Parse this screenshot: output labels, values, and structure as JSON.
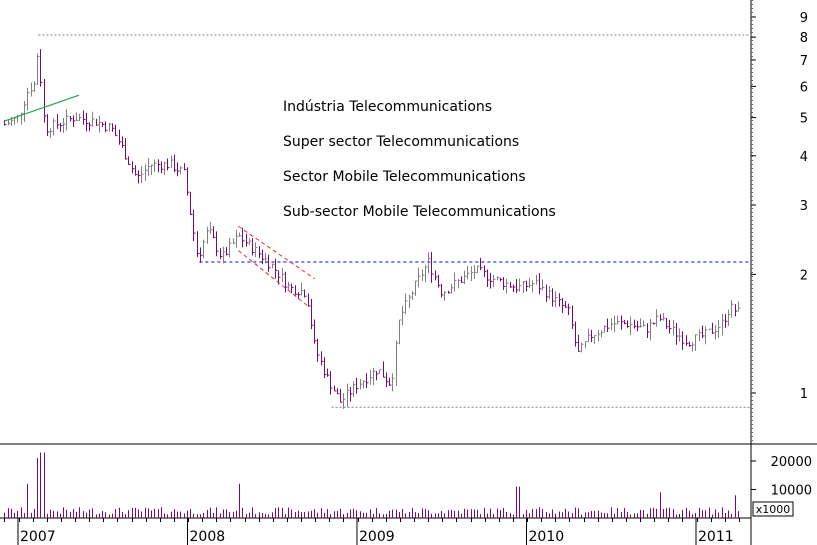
{
  "chart_data": [
    {
      "type": "ohlc",
      "scale": "log",
      "y_ticks": [
        1,
        2,
        3,
        4,
        5,
        6,
        7,
        8,
        9
      ],
      "x_ticks": [
        "2007",
        "2008",
        "2009",
        "2010",
        "2011"
      ],
      "annotations": [
        "Indústria Telecommunications",
        "Super sector Telecommunications",
        "Sector Mobile Telecommunications",
        "Sub-sector Mobile Telecommunications"
      ],
      "reference_lines": [
        {
          "y": 8.1,
          "color": "#808080",
          "style": "dotted"
        },
        {
          "y": 2.15,
          "color": "#0000cc",
          "style": "dashed"
        },
        {
          "y": 0.92,
          "color": "#808080",
          "style": "dotted"
        }
      ],
      "trend_line": {
        "from": [
          2006.92,
          4.9
        ],
        "to": [
          2007.36,
          5.7
        ],
        "color": "#2e9e4f"
      },
      "channel_lines": [
        {
          "from": [
            2008.3,
            2.65
          ],
          "to": [
            2008.75,
            1.95
          ],
          "color": "#e03030"
        },
        {
          "from": [
            2008.3,
            2.3
          ],
          "to": [
            2008.72,
            1.65
          ],
          "color": "#e03030"
        }
      ],
      "price_anchors": [
        [
          2006.92,
          4.8
        ],
        [
          2007.0,
          5.0
        ],
        [
          2007.06,
          5.9
        ],
        [
          2007.1,
          6.1
        ],
        [
          2007.12,
          8.0
        ],
        [
          2007.14,
          5.2
        ],
        [
          2007.17,
          4.7
        ],
        [
          2007.25,
          4.85
        ],
        [
          2007.33,
          5.0
        ],
        [
          2007.45,
          4.9
        ],
        [
          2007.55,
          4.7
        ],
        [
          2007.6,
          4.3
        ],
        [
          2007.7,
          3.5
        ],
        [
          2007.78,
          3.8
        ],
        [
          2007.9,
          3.8
        ],
        [
          2007.98,
          3.6
        ],
        [
          2008.02,
          2.8
        ],
        [
          2008.06,
          2.2
        ],
        [
          2008.12,
          2.6
        ],
        [
          2008.2,
          2.2
        ],
        [
          2008.3,
          2.5
        ],
        [
          2008.4,
          2.3
        ],
        [
          2008.5,
          2.1
        ],
        [
          2008.6,
          1.85
        ],
        [
          2008.7,
          1.8
        ],
        [
          2008.75,
          1.3
        ],
        [
          2008.82,
          1.1
        ],
        [
          2008.9,
          0.95
        ],
        [
          2009.0,
          1.05
        ],
        [
          2009.12,
          1.15
        ],
        [
          2009.2,
          1.05
        ],
        [
          2009.25,
          1.55
        ],
        [
          2009.35,
          1.9
        ],
        [
          2009.42,
          2.15
        ],
        [
          2009.5,
          1.8
        ],
        [
          2009.58,
          1.9
        ],
        [
          2009.7,
          2.05
        ],
        [
          2009.8,
          1.95
        ],
        [
          2009.95,
          1.85
        ],
        [
          2010.05,
          1.9
        ],
        [
          2010.15,
          1.75
        ],
        [
          2010.25,
          1.6
        ],
        [
          2010.3,
          1.25
        ],
        [
          2010.38,
          1.4
        ],
        [
          2010.5,
          1.5
        ],
        [
          2010.6,
          1.5
        ],
        [
          2010.7,
          1.45
        ],
        [
          2010.78,
          1.55
        ],
        [
          2010.85,
          1.45
        ],
        [
          2010.95,
          1.35
        ],
        [
          2011.05,
          1.4
        ],
        [
          2011.15,
          1.5
        ],
        [
          2011.2,
          1.65
        ],
        [
          2011.25,
          1.6
        ]
      ],
      "volume_unit": "x1000",
      "volume_ticks": [
        10000,
        20000
      ],
      "volume_spikes": [
        [
          2007.12,
          21000
        ],
        [
          2007.14,
          23000
        ],
        [
          2007.06,
          12000
        ],
        [
          2008.3,
          12000
        ],
        [
          2009.95,
          11000
        ],
        [
          2010.78,
          9000
        ],
        [
          2011.22,
          8000
        ]
      ],
      "colors": {
        "up": "#808080",
        "down": "#7a0a6e",
        "volume": "#7a0a6e"
      }
    }
  ]
}
